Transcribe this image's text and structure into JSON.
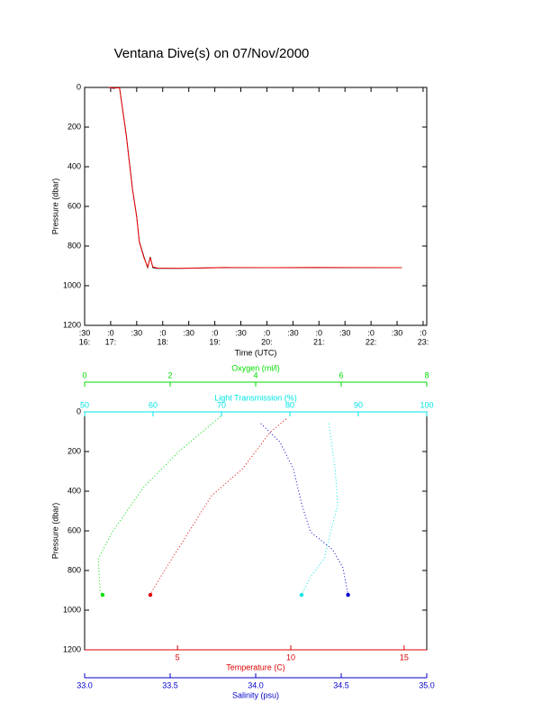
{
  "title": "Ventana Dive(s) on 07/Nov/2000",
  "chart_data": [
    {
      "type": "line",
      "x_label": "Time (UTC)",
      "y_label": "Pressure (dbar)",
      "xlim": [
        16.5,
        23.07
      ],
      "ylim": [
        1200,
        0
      ],
      "xticks": [
        {
          "value": 16.5,
          "label": ":30"
        },
        {
          "value": 17,
          "label": ":0"
        },
        {
          "value": 17.5,
          "label": ":30"
        },
        {
          "value": 18,
          "label": ":0"
        },
        {
          "value": 18.5,
          "label": ":30"
        },
        {
          "value": 19,
          "label": ":0"
        },
        {
          "value": 19.5,
          "label": ":30"
        },
        {
          "value": 20,
          "label": ":0"
        },
        {
          "value": 20.5,
          "label": ":30"
        },
        {
          "value": 21,
          "label": ":0"
        },
        {
          "value": 21.5,
          "label": ":30"
        },
        {
          "value": 22,
          "label": ":0"
        },
        {
          "value": 22.5,
          "label": ":30"
        },
        {
          "value": 23,
          "label": ":0"
        }
      ],
      "xtick_hours": [
        {
          "value": 16.5,
          "label": "16:"
        },
        {
          "value": 17,
          "label": "17:"
        },
        {
          "value": 18,
          "label": "18:"
        },
        {
          "value": 19,
          "label": "19:"
        },
        {
          "value": 20,
          "label": "20:"
        },
        {
          "value": 21,
          "label": "21:"
        },
        {
          "value": 22,
          "label": "22:"
        },
        {
          "value": 23,
          "label": "23:"
        }
      ],
      "yticks": [
        0,
        200,
        400,
        600,
        800,
        1000,
        1200
      ],
      "x": [
        16.97,
        17.05,
        17.17,
        17.3,
        17.42,
        17.5,
        17.55,
        17.64,
        17.71,
        17.76,
        17.81,
        17.9,
        18.33,
        19.2,
        20.06,
        20.93,
        22.59
      ],
      "series": [
        {
          "color": "#000000",
          "values": [
            0,
            5,
            0,
            240,
            514,
            650,
            777,
            855,
            909,
            855,
            909,
            913,
            913,
            909,
            909,
            909,
            909
          ]
        },
        {
          "color": "#ff0000",
          "values": [
            0,
            3,
            2,
            245,
            518,
            655,
            780,
            860,
            905,
            860,
            905,
            911,
            912,
            908,
            909,
            908,
            909
          ]
        }
      ]
    },
    {
      "type": "profile",
      "y_label": "Pressure (dbar)",
      "ylim": [
        1200,
        0
      ],
      "yticks": [
        0,
        200,
        400,
        600,
        800,
        1000,
        1200
      ],
      "series": [
        {
          "name": "Oxygen (ml/l)",
          "color": "#00dd00",
          "xlim": [
            0,
            8
          ],
          "xticks": [
            0,
            2,
            4,
            6,
            8
          ],
          "values": [
            3.18,
            2.23,
            1.39,
            0.65,
            0.32,
            0.36,
            0.42
          ],
          "pressure": [
            23,
            195,
            377,
            605,
            740,
            900,
            923
          ]
        },
        {
          "name": "Light Transmission (%)",
          "color": "#00e5e5",
          "xlim": [
            50,
            100
          ],
          "xticks": [
            50,
            60,
            70,
            80,
            90,
            100
          ],
          "values": [
            85.7,
            86.6,
            87,
            86.3,
            85,
            83,
            81.7
          ],
          "pressure": [
            59,
            286,
            468,
            559,
            741,
            832,
            923
          ]
        },
        {
          "name": "Temperature (C)",
          "color": "#dd0000",
          "xlim": [
            0.9,
            16.0
          ],
          "xticks": [
            5,
            10,
            15
          ],
          "values": [
            9.79,
            9.07,
            7.88,
            6.5,
            5.5,
            4.5,
            3.9,
            3.8
          ],
          "pressure": [
            36,
            105,
            286,
            423,
            605,
            786,
            900,
            923
          ]
        },
        {
          "name": "Salinity (psu)",
          "color": "#0000cc",
          "xlim": [
            33,
            35
          ],
          "xticks": [
            {
              "value": 33,
              "label": "33.0"
            },
            {
              "value": 33.5,
              "label": "33.5"
            },
            {
              "value": 34,
              "label": "34.0"
            },
            {
              "value": 34.5,
              "label": "34.5"
            },
            {
              "value": 35,
              "label": "35.0"
            }
          ],
          "values": [
            34.03,
            34.14,
            34.22,
            34.27,
            34.32,
            34.45,
            34.51,
            34.54
          ],
          "pressure": [
            59,
            150,
            286,
            468,
            605,
            695,
            786,
            923
          ]
        }
      ]
    }
  ]
}
